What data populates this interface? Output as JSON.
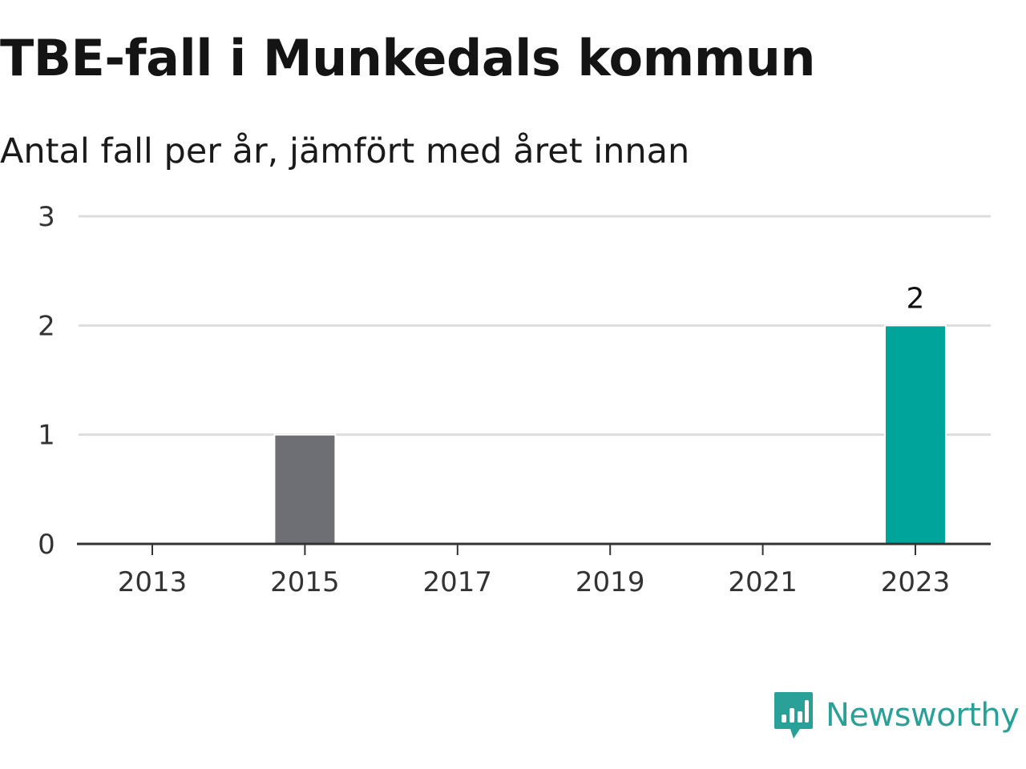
{
  "header": {
    "title": "TBE-fall i Munkedals kommun",
    "subtitle": "Antal fall per år, jämfört med året innan"
  },
  "brand": {
    "name": "Newsworthy",
    "color": "#2aa198",
    "icon": "bar-chart-speech-bubble-icon"
  },
  "colors": {
    "highlight": "#00a49a",
    "previous": "#6e6e75",
    "grid": "#dddddd",
    "axis": "#333333"
  },
  "chart_data": {
    "type": "bar",
    "categories": [
      "2013",
      "2014",
      "2015",
      "2016",
      "2017",
      "2018",
      "2019",
      "2020",
      "2021",
      "2022",
      "2023"
    ],
    "values": [
      0,
      0,
      1,
      0,
      0,
      0,
      0,
      0,
      0,
      0,
      2
    ],
    "x_tick_labels": [
      "2013",
      "2015",
      "2017",
      "2019",
      "2021",
      "2023"
    ],
    "y_ticks": [
      0,
      1,
      2,
      3
    ],
    "ylim": [
      0,
      3
    ],
    "highlight_category": "2023",
    "previous_category": "2015",
    "data_labels": [
      {
        "category": "2023",
        "text": "2"
      }
    ],
    "grid": true,
    "legend": "none",
    "xlabel": "",
    "ylabel": ""
  }
}
